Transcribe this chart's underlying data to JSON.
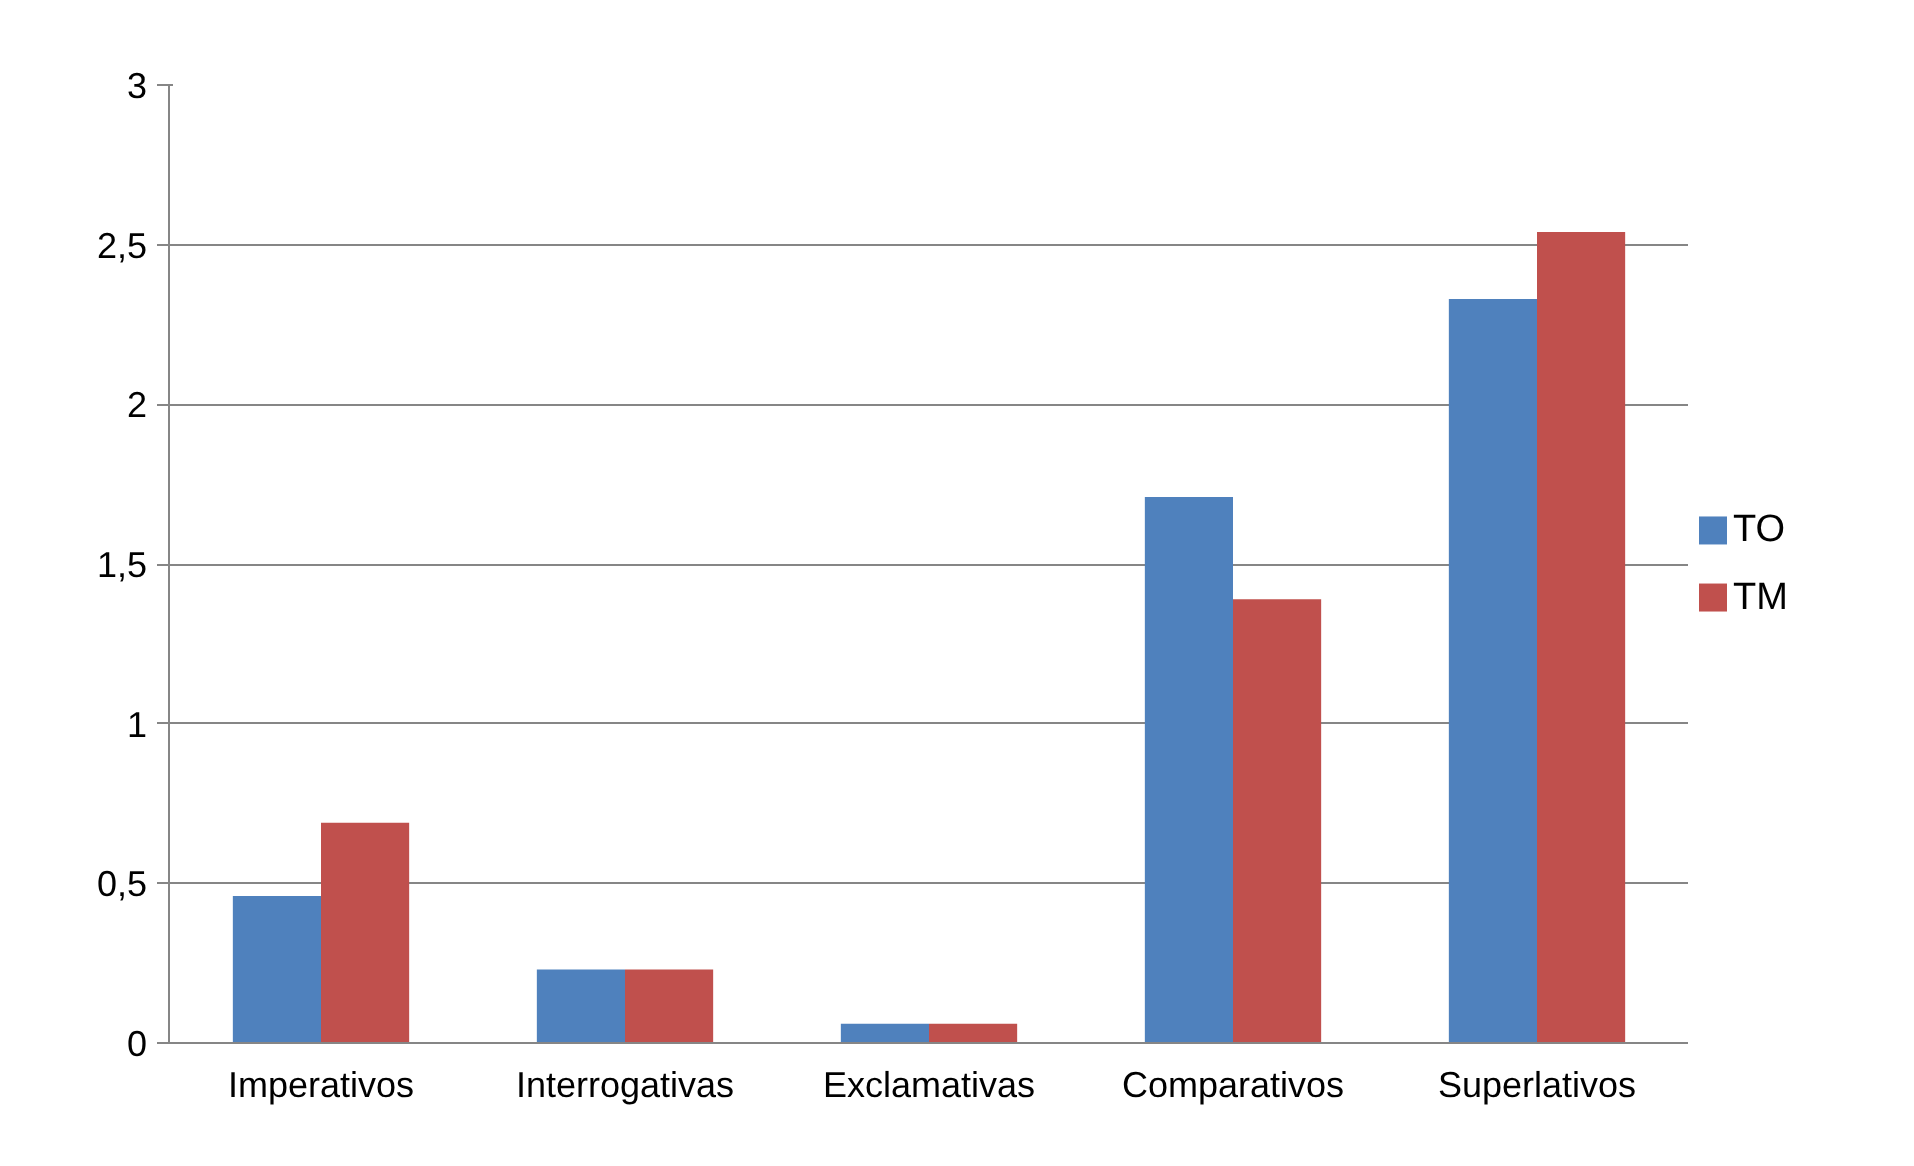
{
  "chart_data": {
    "type": "bar",
    "categories": [
      "Imperativos",
      "Interrogativas",
      "Exclamativas",
      "Comparativos",
      "Superlativos"
    ],
    "series": [
      {
        "name": "TO",
        "color": "#4f81bd",
        "values": [
          0.46,
          0.23,
          0.06,
          1.71,
          2.33
        ]
      },
      {
        "name": "TM",
        "color": "#c0504d",
        "values": [
          0.69,
          0.23,
          0.06,
          1.39,
          2.54
        ]
      }
    ],
    "ylim": [
      0,
      3
    ],
    "yticks": [
      0,
      {
        "value": 0.5,
        "label": "0,5"
      },
      1,
      {
        "value": 1.5,
        "label": "1,5"
      },
      2,
      {
        "value": 2.5,
        "label": "2,5"
      },
      3
    ],
    "grid": "y",
    "legend": "right"
  }
}
